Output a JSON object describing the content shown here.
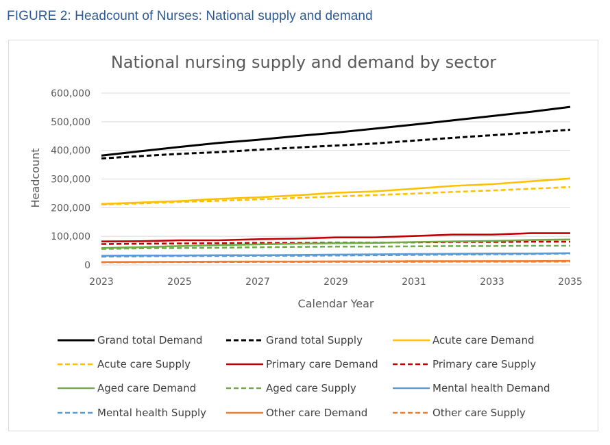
{
  "figure_caption": "FIGURE 2: Headcount of Nurses: National supply and demand",
  "chart_data": {
    "type": "line",
    "title": "National nursing supply and demand by sector",
    "xlabel": "Calendar Year",
    "ylabel": "Headcount",
    "x": [
      2023,
      2024,
      2025,
      2026,
      2027,
      2028,
      2029,
      2030,
      2031,
      2032,
      2033,
      2034,
      2035
    ],
    "x_ticks": [
      "2023",
      "2025",
      "2027",
      "2029",
      "2031",
      "2033",
      "2035"
    ],
    "y_ticks": [
      "0",
      "100,000",
      "200,000",
      "300,000",
      "400,000",
      "500,000",
      "600,000"
    ],
    "ylim": [
      0,
      600000
    ],
    "grid": "horizontal",
    "legend_position": "bottom",
    "series": [
      {
        "name": "Grand total Demand",
        "color": "#000000",
        "dash": "solid",
        "values": [
          382000,
          397000,
          412000,
          426000,
          437000,
          450000,
          462000,
          476000,
          490000,
          505000,
          520000,
          535000,
          552000
        ]
      },
      {
        "name": "Grand total Supply",
        "color": "#000000",
        "dash": "dashed",
        "values": [
          372000,
          380000,
          388000,
          394000,
          402000,
          410000,
          417000,
          424000,
          434000,
          444000,
          453000,
          462000,
          472000
        ]
      },
      {
        "name": "Acute care Demand",
        "color": "#ffc000",
        "dash": "solid",
        "values": [
          213000,
          218000,
          223000,
          231000,
          236000,
          243000,
          252000,
          257000,
          266000,
          276000,
          282000,
          292000,
          302000
        ]
      },
      {
        "name": "Acute care Supply",
        "color": "#ffc000",
        "dash": "dashed",
        "values": [
          211000,
          215000,
          220000,
          224000,
          229000,
          234000,
          239000,
          244000,
          249000,
          255000,
          260000,
          266000,
          272000
        ]
      },
      {
        "name": "Primary care Demand",
        "color": "#c00000",
        "dash": "solid",
        "values": [
          82000,
          83000,
          86000,
          86000,
          90000,
          92000,
          96000,
          96000,
          101000,
          106000,
          106000,
          111000,
          111000
        ]
      },
      {
        "name": "Primary care Supply",
        "color": "#c00000",
        "dash": "dashed",
        "values": [
          73000,
          74000,
          75000,
          76000,
          77000,
          77000,
          78000,
          78000,
          79000,
          80000,
          80000,
          81000,
          81000
        ]
      },
      {
        "name": "Aged care Demand",
        "color": "#70ad47",
        "dash": "solid",
        "values": [
          59000,
          62000,
          66000,
          69000,
          72000,
          74000,
          76000,
          77000,
          80000,
          82000,
          84000,
          87000,
          89000
        ]
      },
      {
        "name": "Aged care Supply",
        "color": "#70ad47",
        "dash": "dashed",
        "values": [
          56000,
          58000,
          59000,
          60000,
          62000,
          63000,
          64000,
          64000,
          65000,
          66000,
          66000,
          67000,
          67000
        ]
      },
      {
        "name": "Mental health Demand",
        "color": "#5b9bd5",
        "dash": "solid",
        "values": [
          32000,
          33000,
          33000,
          34000,
          34000,
          35000,
          36000,
          37000,
          38000,
          39000,
          40000,
          40000,
          41000
        ]
      },
      {
        "name": "Mental health Supply",
        "color": "#5b9bd5",
        "dash": "dashed",
        "values": [
          29000,
          30000,
          31000,
          31000,
          32000,
          32000,
          33000,
          34000,
          35000,
          36000,
          37000,
          38000,
          40000
        ]
      },
      {
        "name": "Other care Demand",
        "color": "#ed7d31",
        "dash": "solid",
        "values": [
          10000,
          10500,
          11000,
          11500,
          12000,
          12000,
          12500,
          12500,
          13000,
          13000,
          13500,
          13500,
          14000
        ]
      },
      {
        "name": "Other care Supply",
        "color": "#ed7d31",
        "dash": "dashed",
        "values": [
          9000,
          9500,
          10000,
          10000,
          10500,
          10500,
          11000,
          11000,
          11000,
          11500,
          11500,
          11500,
          12000
        ]
      }
    ]
  }
}
